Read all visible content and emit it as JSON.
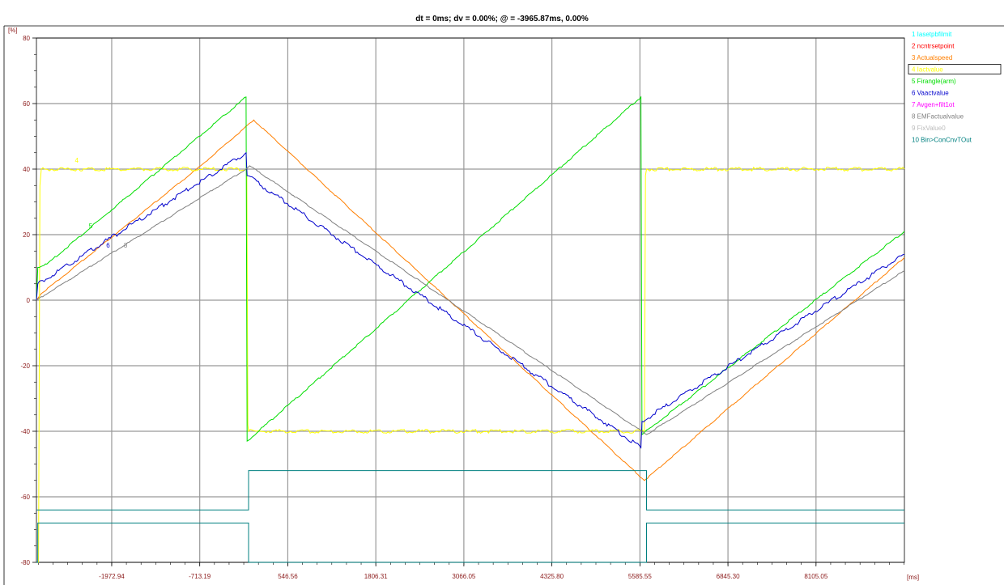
{
  "header": {
    "title": "dt = 0ms; dv = 0.00%; @ = -3965.87ms, 0.00%"
  },
  "chart_data": {
    "type": "line",
    "y_unit": "[%]",
    "x_unit": "[ms]",
    "ylim": [
      -80,
      80
    ],
    "xlim": [
      -3050,
      9370
    ],
    "y_ticks": [
      80,
      60,
      40,
      20,
      0,
      -20,
      -40,
      -60,
      -80
    ],
    "x_ticks": [
      -1972.94,
      -713.19,
      546.56,
      1806.31,
      3066.05,
      4325.8,
      5585.55,
      6845.3,
      8105.05
    ],
    "x_tick_labels": [
      "-1972.94",
      "-713.19",
      "546.56",
      "1806.31",
      "3066.05",
      "4325.80",
      "5585.55",
      "6845.30",
      "8105.05"
    ],
    "y_tick_labels": [
      "80",
      "60",
      "40",
      "20",
      "0",
      "-20",
      "-40",
      "-60",
      "-80"
    ],
    "grid": true,
    "legend_position": "top-right",
    "selected_series": 4,
    "series": [
      {
        "name": "1  Iasetpbfilmit",
        "color": "#00ffff",
        "points": []
      },
      {
        "name": "2  ncntrsetpoint",
        "color": "#ff0000",
        "points": []
      },
      {
        "name": "3  Actualspeed",
        "color": "#ff7f00",
        "points": [
          [
            -3050,
            0
          ],
          [
            -2980,
            2
          ],
          [
            -700,
            41
          ],
          [
            60,
            55
          ],
          [
            5650,
            -55
          ],
          [
            9370,
            13
          ]
        ]
      },
      {
        "name": "4  Iactvalue",
        "color": "#ffff00",
        "points": [
          [
            -3050,
            -80
          ],
          [
            -3020,
            -80
          ],
          [
            -3000,
            35
          ],
          [
            -2980,
            40
          ],
          [
            -50,
            40
          ],
          [
            -40,
            40
          ],
          [
            -25,
            -38
          ],
          [
            -15,
            -40
          ],
          [
            5650,
            -40
          ],
          [
            5665,
            38
          ],
          [
            5680,
            40
          ],
          [
            9370,
            40
          ]
        ]
      },
      {
        "name": "5  Firangle(arm)",
        "color": "#00dd00",
        "points": [
          [
            -3050,
            0
          ],
          [
            -3030,
            10
          ],
          [
            -2900,
            11
          ],
          [
            -50,
            62
          ],
          [
            -35,
            -43
          ],
          [
            5600,
            62
          ],
          [
            5615,
            -41
          ],
          [
            9370,
            21
          ]
        ]
      },
      {
        "name": "6  Vaactvalue",
        "color": "#0000cc",
        "points": [
          [
            -3050,
            0
          ],
          [
            -3030,
            5
          ],
          [
            -50,
            45
          ],
          [
            -35,
            38
          ],
          [
            5600,
            -45
          ],
          [
            5615,
            -37
          ],
          [
            9370,
            14
          ]
        ]
      },
      {
        "name": "7  Avgen+filt1ot",
        "color": "#ff00ff",
        "points": []
      },
      {
        "name": "8  EMFactualvalue",
        "color": "#808080",
        "points": [
          [
            -3050,
            0
          ],
          [
            -50,
            40
          ],
          [
            0,
            41
          ],
          [
            5680,
            -41
          ],
          [
            9370,
            9
          ]
        ]
      },
      {
        "name": "9  FixValue0",
        "color": "#bbbbbb",
        "points": []
      },
      {
        "name": "10  Bin>ConCnvTOut",
        "color": "#008080",
        "points": [
          [
            -3050,
            -64
          ],
          [
            -15,
            -64
          ],
          [
            -15,
            -52
          ],
          [
            5680,
            -52
          ],
          [
            5680,
            -64
          ],
          [
            9370,
            -64
          ]
        ]
      },
      {
        "name": "",
        "color": "#008080",
        "points": [
          [
            -3050,
            -80
          ],
          [
            -3030,
            -80
          ],
          [
            -3030,
            -68
          ],
          [
            -15,
            -68
          ],
          [
            -15,
            -80
          ],
          [
            5680,
            -80
          ],
          [
            5680,
            -68
          ],
          [
            9370,
            -68
          ]
        ]
      }
    ],
    "curve_labels": [
      {
        "text": "5",
        "color": "#00dd00",
        "x": -2300,
        "y": 22
      },
      {
        "text": "6",
        "color": "#0000cc",
        "x": -2050,
        "y": 16
      },
      {
        "text": "8",
        "color": "#808080",
        "x": -1800,
        "y": 16
      },
      {
        "text": "4",
        "color": "#ffff00",
        "x": -2500,
        "y": 42
      }
    ]
  }
}
